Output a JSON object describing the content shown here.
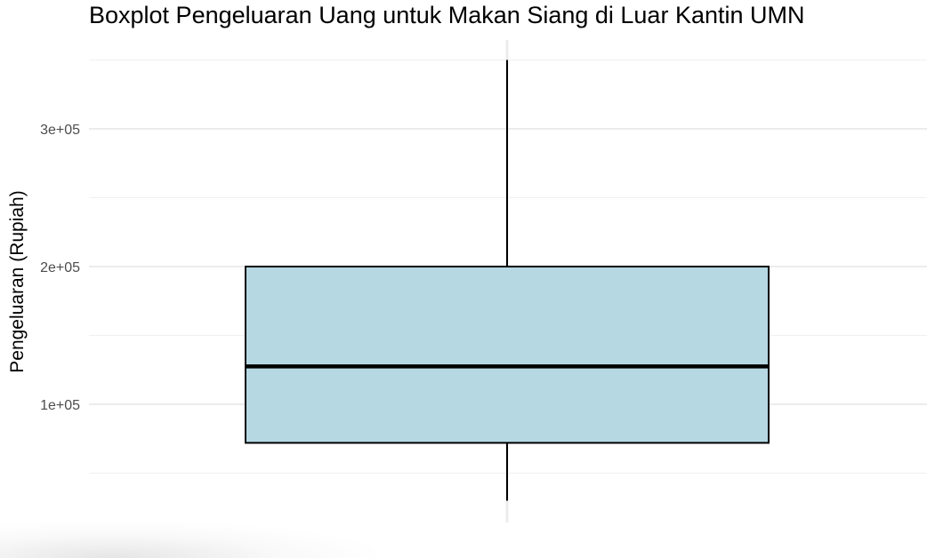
{
  "chart_data": {
    "type": "boxplot",
    "title": "Boxplot Pengeluaran Uang untuk Makan Siang di Luar Kantin UMN",
    "xlabel": "",
    "ylabel": "Pengeluaran (Rupiah)",
    "ylim": [
      15000,
      365000
    ],
    "y_ticks": [
      {
        "value": 100000,
        "label": "1e+05"
      },
      {
        "value": 200000,
        "label": "2e+05"
      },
      {
        "value": 300000,
        "label": "3e+05"
      }
    ],
    "y_minor_ticks": [
      50000,
      150000,
      250000,
      350000
    ],
    "grid": true,
    "box": {
      "min": 30000,
      "q1": 72000,
      "median": 127500,
      "q3": 200000,
      "max": 350000,
      "fill_color": "#b5d8e3",
      "stroke_color": "#000000"
    }
  }
}
